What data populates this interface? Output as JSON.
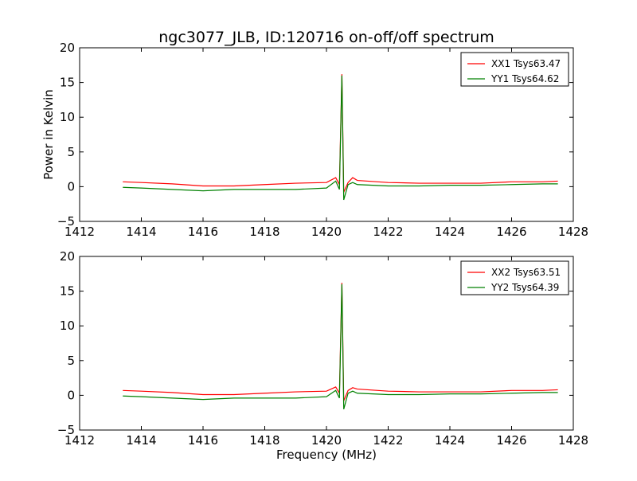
{
  "chart_data": [
    {
      "type": "line",
      "title": "ngc3077_JLB, ID:120716 on-off/off spectrum",
      "ylabel": "Power in Kelvin",
      "xlabel": "",
      "xlim": [
        1412,
        1428
      ],
      "ylim": [
        -5,
        20
      ],
      "xticks": [
        "1412",
        "1414",
        "1416",
        "1418",
        "1420",
        "1422",
        "1424",
        "1426",
        "1428"
      ],
      "yticks": [
        "−5",
        "0",
        "5",
        "10",
        "15",
        "20"
      ],
      "legend_position": "top-right",
      "series": [
        {
          "name": "XX1 Tsys63.47",
          "color": "#ff0000",
          "points": [
            [
              1413.4,
              0.7
            ],
            [
              1414,
              0.6
            ],
            [
              1415,
              0.4
            ],
            [
              1416,
              0.1
            ],
            [
              1417,
              0.1
            ],
            [
              1418,
              0.3
            ],
            [
              1419,
              0.5
            ],
            [
              1420,
              0.6
            ],
            [
              1420.3,
              1.3
            ],
            [
              1420.42,
              0.3
            ],
            [
              1420.5,
              16.2
            ],
            [
              1420.56,
              -0.8
            ],
            [
              1420.7,
              0.6
            ],
            [
              1420.85,
              1.3
            ],
            [
              1421,
              0.9
            ],
            [
              1422,
              0.6
            ],
            [
              1423,
              0.5
            ],
            [
              1424,
              0.5
            ],
            [
              1425,
              0.5
            ],
            [
              1426,
              0.7
            ],
            [
              1427,
              0.7
            ],
            [
              1427.5,
              0.8
            ]
          ]
        },
        {
          "name": "YY1 Tsys64.62",
          "color": "#008000",
          "points": [
            [
              1413.4,
              -0.1
            ],
            [
              1414,
              -0.2
            ],
            [
              1415,
              -0.4
            ],
            [
              1416,
              -0.6
            ],
            [
              1417,
              -0.4
            ],
            [
              1418,
              -0.4
            ],
            [
              1419,
              -0.4
            ],
            [
              1420,
              -0.2
            ],
            [
              1420.3,
              0.8
            ],
            [
              1420.42,
              -0.4
            ],
            [
              1420.5,
              16.0
            ],
            [
              1420.56,
              -1.9
            ],
            [
              1420.7,
              0.3
            ],
            [
              1420.85,
              0.6
            ],
            [
              1421,
              0.3
            ],
            [
              1422,
              0.1
            ],
            [
              1423,
              0.1
            ],
            [
              1424,
              0.2
            ],
            [
              1425,
              0.2
            ],
            [
              1426,
              0.3
            ],
            [
              1427,
              0.4
            ],
            [
              1427.5,
              0.4
            ]
          ]
        }
      ]
    },
    {
      "type": "line",
      "title": "",
      "ylabel": "",
      "xlabel": "Frequency (MHz)",
      "xlim": [
        1412,
        1428
      ],
      "ylim": [
        -5,
        20
      ],
      "xticks": [
        "1412",
        "1414",
        "1416",
        "1418",
        "1420",
        "1422",
        "1424",
        "1426",
        "1428"
      ],
      "yticks": [
        "−5",
        "0",
        "5",
        "10",
        "15",
        "20"
      ],
      "legend_position": "top-right",
      "series": [
        {
          "name": "XX2 Tsys63.51",
          "color": "#ff0000",
          "points": [
            [
              1413.4,
              0.7
            ],
            [
              1414,
              0.6
            ],
            [
              1415,
              0.4
            ],
            [
              1416,
              0.1
            ],
            [
              1417,
              0.1
            ],
            [
              1418,
              0.3
            ],
            [
              1419,
              0.5
            ],
            [
              1420,
              0.6
            ],
            [
              1420.3,
              1.2
            ],
            [
              1420.42,
              0.3
            ],
            [
              1420.5,
              16.2
            ],
            [
              1420.56,
              -0.8
            ],
            [
              1420.7,
              0.7
            ],
            [
              1420.85,
              1.1
            ],
            [
              1421,
              0.9
            ],
            [
              1422,
              0.6
            ],
            [
              1423,
              0.5
            ],
            [
              1424,
              0.5
            ],
            [
              1425,
              0.5
            ],
            [
              1426,
              0.7
            ],
            [
              1427,
              0.7
            ],
            [
              1427.5,
              0.8
            ]
          ]
        },
        {
          "name": "YY2 Tsys64.39",
          "color": "#008000",
          "points": [
            [
              1413.4,
              -0.1
            ],
            [
              1414,
              -0.2
            ],
            [
              1415,
              -0.4
            ],
            [
              1416,
              -0.6
            ],
            [
              1417,
              -0.4
            ],
            [
              1418,
              -0.4
            ],
            [
              1419,
              -0.4
            ],
            [
              1420,
              -0.2
            ],
            [
              1420.3,
              0.7
            ],
            [
              1420.42,
              -0.4
            ],
            [
              1420.5,
              16.0
            ],
            [
              1420.56,
              -2.0
            ],
            [
              1420.7,
              0.3
            ],
            [
              1420.85,
              0.6
            ],
            [
              1421,
              0.3
            ],
            [
              1422,
              0.1
            ],
            [
              1423,
              0.1
            ],
            [
              1424,
              0.2
            ],
            [
              1425,
              0.2
            ],
            [
              1426,
              0.3
            ],
            [
              1427,
              0.4
            ],
            [
              1427.5,
              0.4
            ]
          ]
        }
      ]
    }
  ]
}
